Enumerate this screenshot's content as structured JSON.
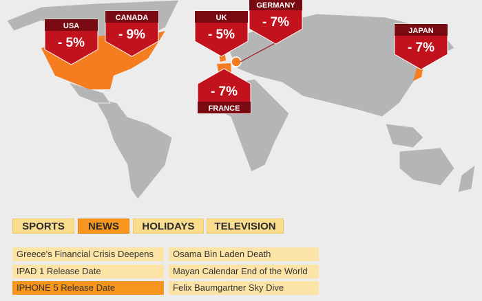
{
  "markers": [
    {
      "label": "USA",
      "value": "- 5%"
    },
    {
      "label": "CANADA",
      "value": "- 9%"
    },
    {
      "label": "UK",
      "value": "- 5%"
    },
    {
      "label": "GERMANY",
      "value": "- 7%"
    },
    {
      "label": "JAPAN",
      "value": "- 7%"
    },
    {
      "label": "FRANCE",
      "value": "- 7%"
    }
  ],
  "tabs": [
    "SPORTS",
    "NEWS",
    "HOLIDAYS",
    "TELEVISION"
  ],
  "active_tab": 1,
  "events": {
    "left": [
      "Greece's Financial Crisis Deepens",
      "IPAD 1 Release Date",
      "IPHONE 5 Release Date"
    ],
    "right": [
      "Osama Bin Laden Death",
      "Mayan Calendar End of the World",
      "Felix Baumgartner Sky Dive"
    ],
    "active": "left.2"
  }
}
